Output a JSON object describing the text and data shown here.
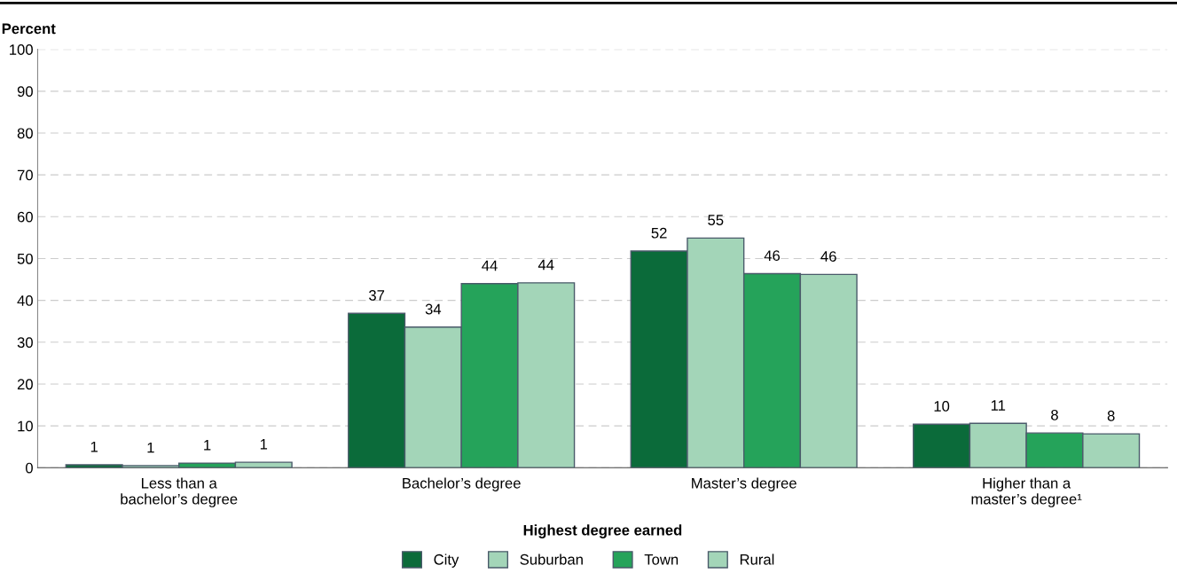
{
  "chart_data": {
    "type": "bar",
    "categories": [
      "Less than a\nbachelor’s degree",
      "Bachelor’s degree",
      "Master’s degree",
      "Higher than a\nmaster’s degree¹"
    ],
    "series": [
      {
        "name": "City",
        "color": "#0b6b3a",
        "values": [
          0.7,
          36.9,
          51.8,
          10.4
        ],
        "value_labels": [
          "1",
          "37",
          "52",
          "10"
        ]
      },
      {
        "name": "Suburban",
        "color": "#a3d5b8",
        "values": [
          0.5,
          33.6,
          54.9,
          10.6
        ],
        "value_labels": [
          "1",
          "34",
          "55",
          "11"
        ]
      },
      {
        "name": "Town",
        "color": "#25a35a",
        "values": [
          1.1,
          44.0,
          46.4,
          8.3
        ],
        "value_labels": [
          "1",
          "44",
          "46",
          "8"
        ]
      },
      {
        "name": "Rural",
        "color": "#a3d5b8",
        "values": [
          1.3,
          44.2,
          46.2,
          8.1
        ],
        "value_labels": [
          "1",
          "44",
          "46",
          "8"
        ]
      }
    ],
    "ylabel": "Percent",
    "xlabel": "Highest degree earned",
    "ylim": [
      0,
      100
    ],
    "yticks": [
      0,
      10,
      20,
      30,
      40,
      50,
      60,
      70,
      80,
      90,
      100
    ],
    "grid": "y",
    "legend": "bottom"
  }
}
